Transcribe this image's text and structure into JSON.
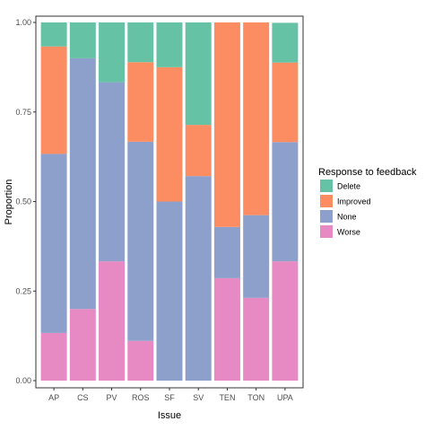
{
  "chart_data": {
    "type": "bar",
    "stacked": true,
    "normalized": true,
    "categories": [
      "AP",
      "CS",
      "PV",
      "ROS",
      "SF",
      "SV",
      "TEN",
      "TON",
      "UPA"
    ],
    "series": [
      {
        "name": "Delete",
        "color": "#66C2A5",
        "values": [
          0.067,
          0.1,
          0.167,
          0.111,
          0.125,
          0.286,
          0.0,
          0.0,
          0.111
        ]
      },
      {
        "name": "Improved",
        "color": "#FC8D62",
        "values": [
          0.3,
          0.0,
          0.0,
          0.222,
          0.375,
          0.143,
          0.571,
          0.538,
          0.222
        ]
      },
      {
        "name": "None",
        "color": "#8DA0CB",
        "values": [
          0.5,
          0.7,
          0.5,
          0.556,
          0.5,
          0.571,
          0.143,
          0.231,
          0.333
        ]
      },
      {
        "name": "Worse",
        "color": "#E78AC3",
        "values": [
          0.133,
          0.2,
          0.333,
          0.111,
          0.0,
          0.0,
          0.286,
          0.231,
          0.333
        ]
      }
    ],
    "xlabel": "Issue",
    "ylabel": "Proportion",
    "ylim": [
      0,
      1
    ],
    "yticks": [
      0,
      0.25,
      0.5,
      0.75,
      1
    ],
    "ytick_labels": [
      "0.00",
      "0.25",
      "0.50",
      "0.75",
      "1.00"
    ],
    "legend_title": "Response to feedback",
    "legend_position": "right",
    "grid": false
  }
}
